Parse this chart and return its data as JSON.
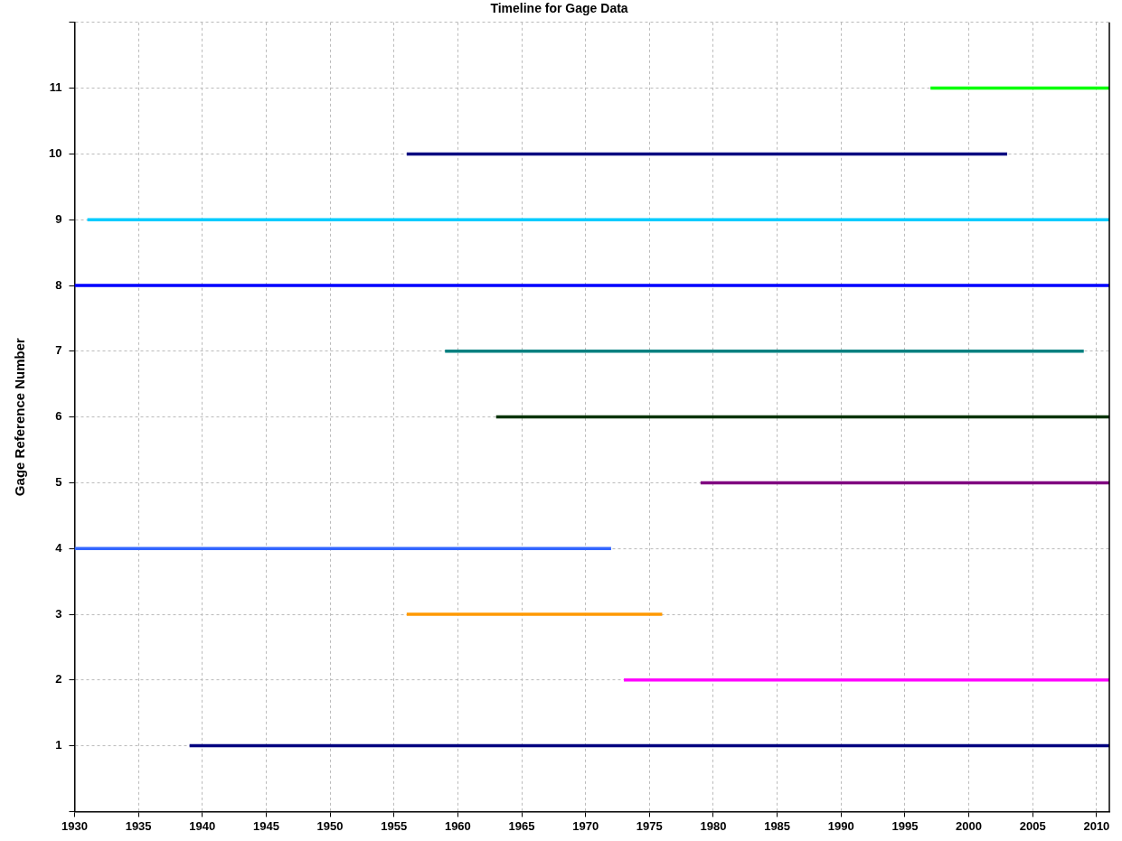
{
  "chart_data": {
    "type": "line",
    "title": "Timeline for Gage Data",
    "ylabel": "Gage Reference Number",
    "xlim": [
      1930,
      2011
    ],
    "xticks": [
      1930,
      1935,
      1940,
      1945,
      1950,
      1955,
      1960,
      1965,
      1970,
      1975,
      1980,
      1985,
      1990,
      1995,
      2000,
      2005,
      2010
    ],
    "ylim": [
      0,
      12
    ],
    "yticks": [
      {
        "value": 0,
        "label": null
      },
      1,
      2,
      3,
      4,
      5,
      6,
      7,
      8,
      9,
      10,
      11,
      {
        "value": 12,
        "label": null
      }
    ],
    "grid": true,
    "legend": false,
    "marker": "none",
    "line_style": "solid",
    "series": [
      {
        "color": "#000080",
        "x": [
          1939,
          2011
        ],
        "values": [
          1,
          1
        ]
      },
      {
        "color": "#ff00ff",
        "x": [
          1973,
          2011
        ],
        "values": [
          2,
          2
        ]
      },
      {
        "color": "#ff9900",
        "x": [
          1956,
          1976
        ],
        "values": [
          3,
          3
        ]
      },
      {
        "color": "#3366ff",
        "x": [
          1930,
          1972
        ],
        "values": [
          4,
          4
        ]
      },
      {
        "color": "#800080",
        "x": [
          1979,
          2011
        ],
        "values": [
          5,
          5
        ]
      },
      {
        "color": "#003300",
        "x": [
          1963,
          2011
        ],
        "values": [
          6,
          6
        ]
      },
      {
        "color": "#008080",
        "x": [
          1959,
          2009
        ],
        "values": [
          7,
          7
        ]
      },
      {
        "color": "#0000ff",
        "x": [
          1930,
          2011
        ],
        "values": [
          8,
          8
        ]
      },
      {
        "color": "#00ccff",
        "x": [
          1931,
          2011
        ],
        "values": [
          9,
          9
        ]
      },
      {
        "color": "#000080",
        "x": [
          1956,
          2003
        ],
        "values": [
          10,
          10
        ]
      },
      {
        "color": "#00ff00",
        "x": [
          1997,
          2011
        ],
        "values": [
          11,
          11
        ]
      }
    ]
  }
}
